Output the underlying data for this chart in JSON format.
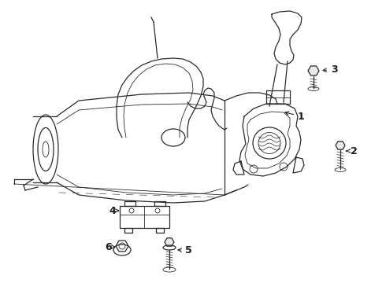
{
  "background_color": "#ffffff",
  "line_color": "#2a2a2a",
  "label_color": "#1a1a1a",
  "figsize": [
    4.9,
    3.6
  ],
  "dpi": 100,
  "lw_main": 0.9,
  "lw_thin": 0.6
}
